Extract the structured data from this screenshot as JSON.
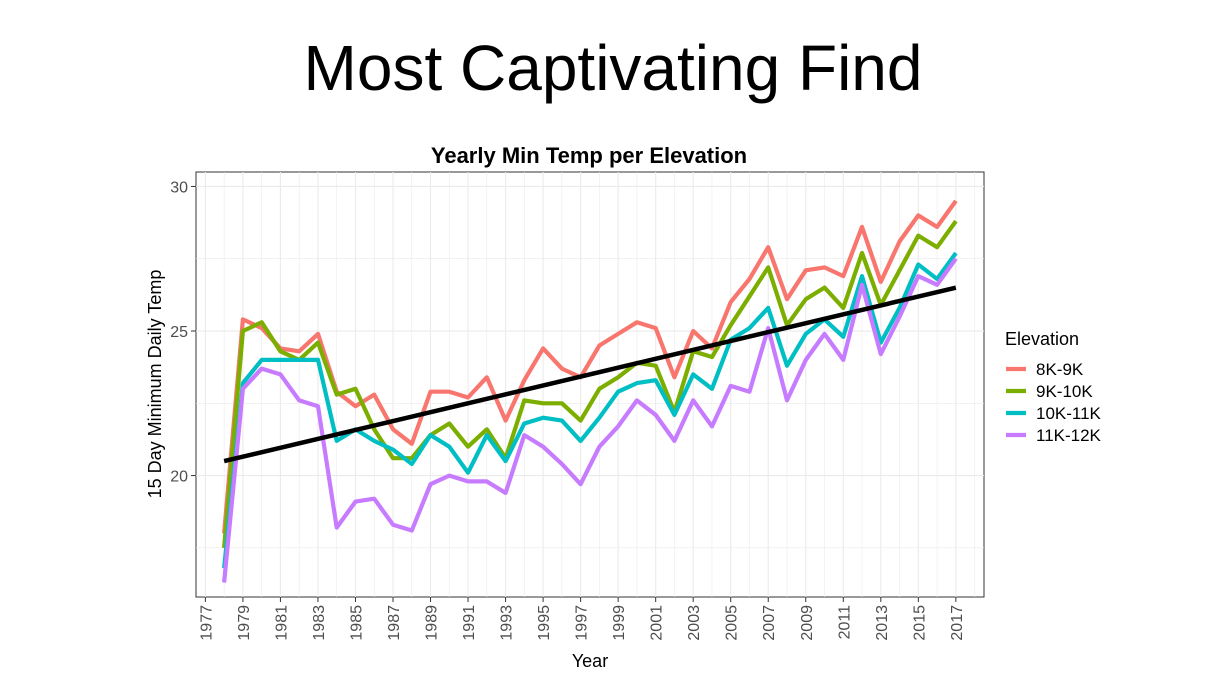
{
  "slide": {
    "title": "Most Captivating Find"
  },
  "chart_data": {
    "type": "line",
    "title": "Yearly Min Temp per Elevation",
    "xlabel": "Year",
    "ylabel": "15 Day Minimum Daily Temp",
    "xlim": [
      1976.5,
      2018.5
    ],
    "ylim": [
      15.8,
      30.5
    ],
    "x_ticks": [
      1977,
      1979,
      1981,
      1983,
      1985,
      1987,
      1989,
      1991,
      1993,
      1995,
      1997,
      1999,
      2001,
      2003,
      2005,
      2007,
      2009,
      2011,
      2013,
      2015,
      2017
    ],
    "y_ticks": [
      20,
      25,
      30
    ],
    "grid": true,
    "legend": {
      "title": "Elevation",
      "position": "right"
    },
    "x": [
      1978,
      1979,
      1980,
      1981,
      1982,
      1983,
      1984,
      1985,
      1986,
      1987,
      1988,
      1989,
      1990,
      1991,
      1992,
      1993,
      1994,
      1995,
      1996,
      1997,
      1998,
      1999,
      2000,
      2001,
      2002,
      2003,
      2004,
      2005,
      2006,
      2007,
      2008,
      2009,
      2010,
      2011,
      2012,
      2013,
      2014,
      2015,
      2016,
      2017
    ],
    "series": [
      {
        "name": "8K-9K",
        "color": "#F8766D",
        "values": [
          18.0,
          25.4,
          25.1,
          24.4,
          24.3,
          24.9,
          22.9,
          22.4,
          22.8,
          21.6,
          21.1,
          22.9,
          22.9,
          22.7,
          23.4,
          21.9,
          23.3,
          24.4,
          23.7,
          23.4,
          24.5,
          24.9,
          25.3,
          25.1,
          23.4,
          25.0,
          24.4,
          26.0,
          26.8,
          27.9,
          26.1,
          27.1,
          27.2,
          26.9,
          28.6,
          26.7,
          28.1,
          29.0,
          28.6,
          29.5
        ]
      },
      {
        "name": "9K-10K",
        "color": "#7CAE00",
        "values": [
          17.5,
          25.0,
          25.3,
          24.3,
          24.0,
          24.6,
          22.8,
          23.0,
          21.6,
          20.6,
          20.6,
          21.4,
          21.8,
          21.0,
          21.6,
          20.6,
          22.6,
          22.5,
          22.5,
          21.9,
          23.0,
          23.4,
          23.9,
          23.8,
          22.2,
          24.3,
          24.1,
          25.2,
          26.2,
          27.2,
          25.2,
          26.1,
          26.5,
          25.8,
          27.7,
          25.9,
          27.1,
          28.3,
          27.9,
          28.8
        ]
      },
      {
        "name": "10K-11K",
        "color": "#00BFC4",
        "values": [
          16.8,
          23.2,
          24.0,
          24.0,
          24.0,
          24.0,
          21.2,
          21.6,
          21.2,
          20.9,
          20.4,
          21.4,
          21.0,
          20.1,
          21.4,
          20.5,
          21.8,
          22.0,
          21.9,
          21.2,
          22.0,
          22.9,
          23.2,
          23.3,
          22.1,
          23.5,
          23.0,
          24.7,
          25.1,
          25.8,
          23.8,
          24.9,
          25.4,
          24.8,
          26.9,
          24.6,
          25.8,
          27.3,
          26.8,
          27.7
        ]
      },
      {
        "name": "11K-12K",
        "color": "#C77CFF",
        "values": [
          16.3,
          23.0,
          23.7,
          23.5,
          22.6,
          22.4,
          18.2,
          19.1,
          19.2,
          18.3,
          18.1,
          19.7,
          20.0,
          19.8,
          19.8,
          19.4,
          21.4,
          21.0,
          20.4,
          19.7,
          21.0,
          21.7,
          22.6,
          22.1,
          21.2,
          22.6,
          21.7,
          23.1,
          22.9,
          25.1,
          22.6,
          24.0,
          24.9,
          24.0,
          26.6,
          24.2,
          25.5,
          26.9,
          26.6,
          27.5
        ]
      }
    ],
    "trend_line": {
      "color": "#000000",
      "x": [
        1978,
        2017
      ],
      "y": [
        20.5,
        26.5
      ]
    }
  }
}
